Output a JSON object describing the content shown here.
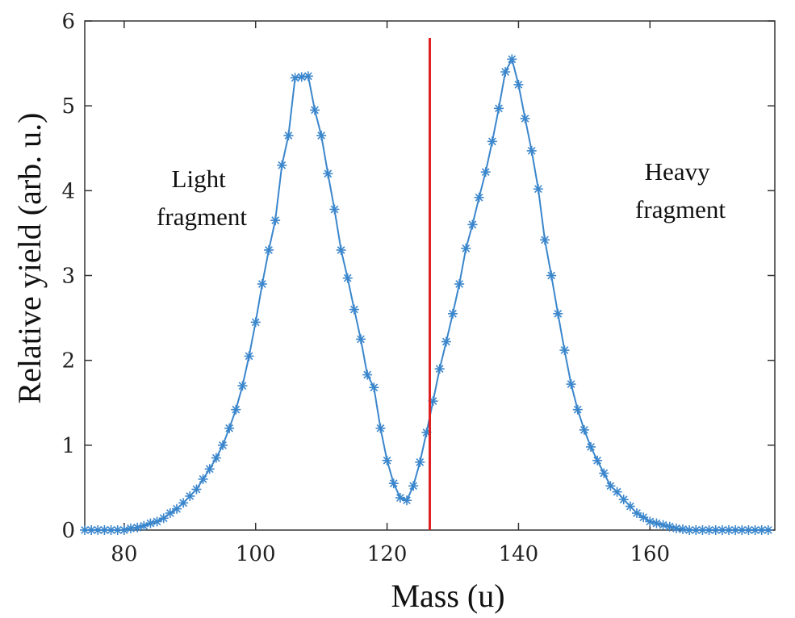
{
  "chart_data": {
    "type": "line",
    "title": "",
    "xlabel": "Mass (u)",
    "ylabel": "Relative yield (arb. u.)",
    "xlim": [
      74,
      179
    ],
    "ylim": [
      0,
      6
    ],
    "x_ticks": [
      80,
      100,
      120,
      140,
      160
    ],
    "y_ticks": [
      0,
      1,
      2,
      3,
      4,
      5,
      6
    ],
    "grid": false,
    "series": [
      {
        "color": "#3a86cc",
        "marker": "asterisk",
        "points": [
          [
            74,
            0.0
          ],
          [
            75,
            0.0
          ],
          [
            76,
            0.0
          ],
          [
            77,
            0.0
          ],
          [
            78,
            0.0
          ],
          [
            79,
            0.0
          ],
          [
            80,
            0.0
          ],
          [
            81,
            0.02
          ],
          [
            82,
            0.03
          ],
          [
            83,
            0.05
          ],
          [
            84,
            0.08
          ],
          [
            85,
            0.1
          ],
          [
            86,
            0.14
          ],
          [
            87,
            0.2
          ],
          [
            88,
            0.25
          ],
          [
            89,
            0.32
          ],
          [
            90,
            0.4
          ],
          [
            91,
            0.48
          ],
          [
            92,
            0.6
          ],
          [
            93,
            0.72
          ],
          [
            94,
            0.85
          ],
          [
            95,
            1.0
          ],
          [
            96,
            1.2
          ],
          [
            97,
            1.42
          ],
          [
            98,
            1.7
          ],
          [
            99,
            2.05
          ],
          [
            100,
            2.45
          ],
          [
            101,
            2.9
          ],
          [
            102,
            3.3
          ],
          [
            103,
            3.65
          ],
          [
            104,
            4.3
          ],
          [
            105,
            4.65
          ],
          [
            106,
            5.33
          ],
          [
            107,
            5.34
          ],
          [
            108,
            5.35
          ],
          [
            109,
            4.95
          ],
          [
            110,
            4.65
          ],
          [
            111,
            4.2
          ],
          [
            112,
            3.78
          ],
          [
            113,
            3.3
          ],
          [
            114,
            2.97
          ],
          [
            115,
            2.6
          ],
          [
            116,
            2.25
          ],
          [
            117,
            1.83
          ],
          [
            118,
            1.68
          ],
          [
            119,
            1.2
          ],
          [
            120,
            0.82
          ],
          [
            121,
            0.55
          ],
          [
            122,
            0.38
          ],
          [
            123,
            0.35
          ],
          [
            124,
            0.52
          ],
          [
            125,
            0.8
          ],
          [
            126,
            1.15
          ],
          [
            127,
            1.52
          ],
          [
            128,
            1.9
          ],
          [
            129,
            2.22
          ],
          [
            130,
            2.55
          ],
          [
            131,
            2.9
          ],
          [
            132,
            3.32
          ],
          [
            133,
            3.6
          ],
          [
            134,
            3.92
          ],
          [
            135,
            4.22
          ],
          [
            136,
            4.58
          ],
          [
            137,
            4.97
          ],
          [
            138,
            5.4
          ],
          [
            139,
            5.55
          ],
          [
            140,
            5.25
          ],
          [
            141,
            4.85
          ],
          [
            142,
            4.47
          ],
          [
            143,
            4.02
          ],
          [
            144,
            3.42
          ],
          [
            145,
            3.0
          ],
          [
            146,
            2.55
          ],
          [
            147,
            2.12
          ],
          [
            148,
            1.72
          ],
          [
            149,
            1.42
          ],
          [
            150,
            1.18
          ],
          [
            151,
            0.98
          ],
          [
            152,
            0.82
          ],
          [
            153,
            0.67
          ],
          [
            154,
            0.52
          ],
          [
            155,
            0.45
          ],
          [
            156,
            0.36
          ],
          [
            157,
            0.28
          ],
          [
            158,
            0.2
          ],
          [
            159,
            0.15
          ],
          [
            160,
            0.1
          ],
          [
            161,
            0.08
          ],
          [
            162,
            0.06
          ],
          [
            163,
            0.04
          ],
          [
            164,
            0.02
          ],
          [
            165,
            0.01
          ],
          [
            166,
            0.0
          ],
          [
            167,
            0.0
          ],
          [
            168,
            0.0
          ],
          [
            169,
            0.0
          ],
          [
            170,
            0.0
          ],
          [
            171,
            0.0
          ],
          [
            172,
            0.0
          ],
          [
            173,
            0.0
          ],
          [
            174,
            0.0
          ],
          [
            175,
            0.0
          ],
          [
            176,
            0.0
          ],
          [
            177,
            0.0
          ],
          [
            178,
            0.0
          ]
        ]
      }
    ],
    "vertical_line": {
      "x": 126.5,
      "y_top": 5.8,
      "color": "#e02020"
    },
    "annotations": [
      {
        "text": [
          "Light",
          "fragment"
        ]
      },
      {
        "text": [
          "Heavy",
          "fragment"
        ]
      }
    ]
  }
}
